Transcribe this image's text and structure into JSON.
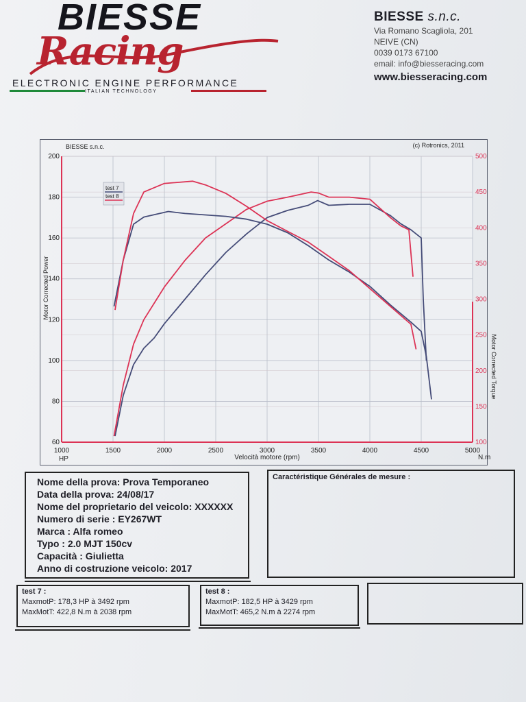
{
  "header": {
    "brand": "BIESSE",
    "brand_script": "Racing",
    "tagline": "ELECTRONIC ENGINE PERFORMANCE",
    "subtagline": "ITALIAN TECHNOLOGY",
    "company_name": "BIESSE",
    "company_suffix": "s.n.c.",
    "address": "Via Romano Scagliola, 201",
    "city": "NEIVE (CN)",
    "phone": "0039 0173 67100",
    "email": "email: info@biesseracing.com",
    "website": "www.biesseracing.com",
    "colors": {
      "red": "#b8232f",
      "green": "#1f8a3a",
      "dark": "#15151c"
    }
  },
  "chart_data": {
    "type": "line",
    "header_left": "BIESSE s.n.c.",
    "header_right": "(c) Rotronics, 2011",
    "xlabel": "Velocità motore (rpm)",
    "ylabel_left": "Motor Corrected Power",
    "ylabel_right": "Motor Corrected Torque",
    "left_unit": "HP",
    "right_unit": "N.m",
    "xlim": [
      1000,
      5000
    ],
    "ylim_left": [
      60,
      200
    ],
    "ylim_right": [
      100,
      500
    ],
    "x_ticks": [
      1000,
      1500,
      2000,
      2500,
      3000,
      3500,
      4000,
      4500,
      5000
    ],
    "y_ticks_left": [
      60,
      80,
      100,
      120,
      140,
      160,
      180,
      200
    ],
    "y_ticks_right": [
      100,
      150,
      200,
      250,
      300,
      350,
      400,
      450,
      500
    ],
    "grid": true,
    "legend": [
      "test 7",
      "test 8"
    ],
    "legend_position": "top-left",
    "series": [
      {
        "name": "test 7",
        "quantity": "power",
        "axis": "left",
        "color": "#454c78",
        "x": [
          1520,
          1600,
          1700,
          1800,
          1900,
          2000,
          2200,
          2400,
          2600,
          2800,
          3000,
          3200,
          3400,
          3492,
          3600,
          3800,
          4000,
          4200,
          4300,
          4400,
          4500,
          4520,
          4550
        ],
        "y": [
          63,
          83,
          98,
          106,
          111,
          118,
          130,
          142,
          153,
          162,
          170,
          173.5,
          176,
          178.3,
          176,
          176.5,
          176.5,
          171,
          167,
          164,
          160,
          130,
          100
        ]
      },
      {
        "name": "test 8",
        "quantity": "power",
        "axis": "left",
        "color": "#dc3355",
        "x": [
          1510,
          1600,
          1700,
          1800,
          1900,
          2000,
          2200,
          2400,
          2600,
          2800,
          3000,
          3200,
          3429,
          3500,
          3600,
          3800,
          4000,
          4200,
          4300,
          4380,
          4420
        ],
        "y": [
          63,
          88,
          108,
          120,
          128,
          136,
          149,
          160,
          167,
          174,
          178,
          180,
          182.5,
          182,
          180,
          180,
          179,
          170,
          166,
          164,
          141
        ]
      },
      {
        "name": "test 7",
        "quantity": "torque",
        "axis": "right",
        "color": "#454c78",
        "x": [
          1510,
          1600,
          1700,
          1800,
          2038,
          2200,
          2400,
          2600,
          2800,
          3000,
          3200,
          3400,
          3600,
          3800,
          4000,
          4200,
          4400,
          4500,
          4550,
          4600
        ],
        "y": [
          290,
          355,
          405,
          415,
          422.8,
          420,
          418,
          416,
          412,
          405,
          393,
          375,
          355,
          338,
          318,
          292,
          268,
          255,
          220,
          160
        ]
      },
      {
        "name": "test 8",
        "quantity": "torque",
        "axis": "right",
        "color": "#dc3355",
        "x": [
          1520,
          1600,
          1700,
          1800,
          2000,
          2274,
          2400,
          2600,
          2800,
          3000,
          3200,
          3400,
          3600,
          3800,
          4000,
          4200,
          4400,
          4450
        ],
        "y": [
          285,
          355,
          420,
          450,
          462,
          465.2,
          460,
          448,
          430,
          410,
          395,
          380,
          360,
          340,
          315,
          290,
          265,
          230
        ]
      }
    ]
  },
  "info": {
    "rows": [
      "Nome della prova: Prova Temporaneo",
      "Data della prova: 24/08/17",
      "Nome del proprietario del veicolo: XXXXXX",
      "Numero di serie  : EY267WT",
      "Marca  : Alfa romeo",
      "Typo  : 2.0 MJT 150cv",
      "Capacità  : Giulietta",
      "Anno di costruzione veicolo: 2017"
    ],
    "characteristics_title": "Caractéristique Générales de mesure :"
  },
  "tests": [
    {
      "title": "test 7 :",
      "power": "MaxmotP: 178,3 HP à 3492 rpm",
      "torque": "MaxMotT: 422,8 N.m à 2038 rpm"
    },
    {
      "title": "test 8 :",
      "power": "MaxmotP: 182,5 HP à 3429 rpm",
      "torque": "MaxMotT: 465,2 N.m à 2274 rpm"
    }
  ]
}
